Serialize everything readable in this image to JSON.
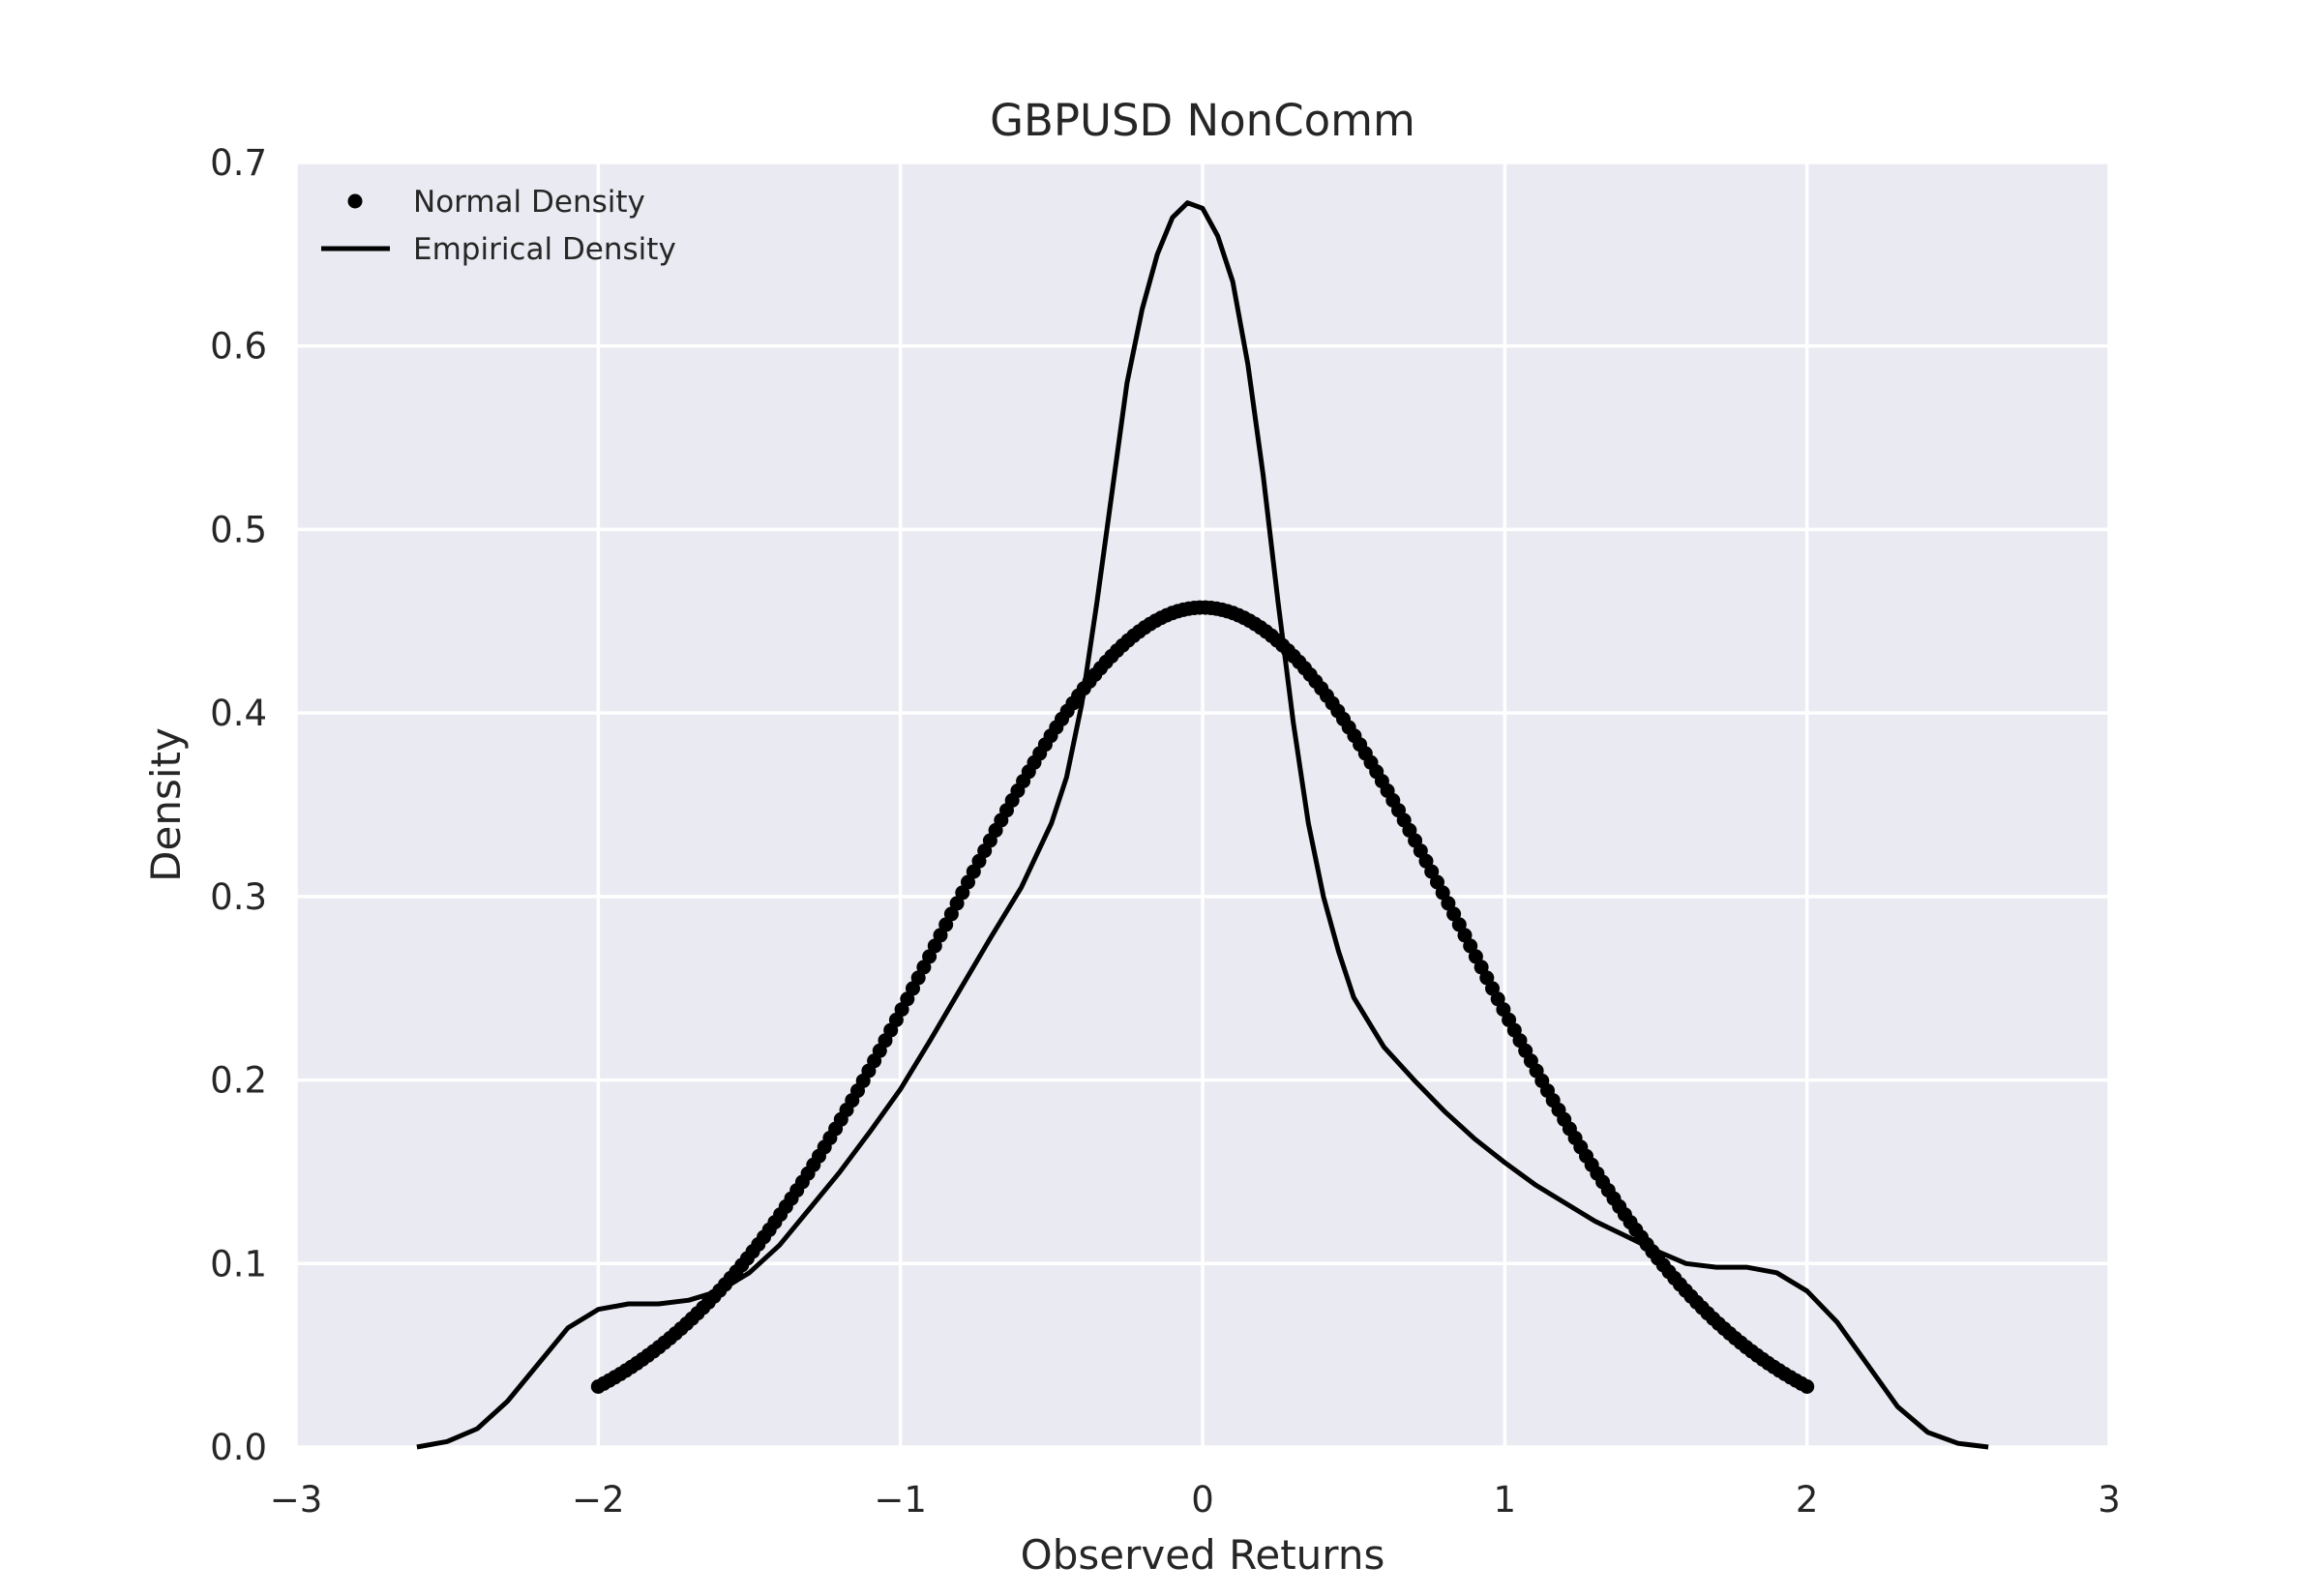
{
  "chart_data": {
    "type": "line",
    "title": "GBPUSD NonComm",
    "xlabel": "Observed Returns",
    "ylabel": "Density",
    "xlim": [
      -3,
      3
    ],
    "ylim": [
      0,
      0.7
    ],
    "xticks": [
      -3,
      -2,
      -1,
      0,
      1,
      2,
      3
    ],
    "xtick_labels": [
      "−3",
      "−2",
      "−1",
      "0",
      "1",
      "2",
      "3"
    ],
    "yticks": [
      0,
      0.1,
      0.2,
      0.3,
      0.4,
      0.5,
      0.6,
      0.7
    ],
    "ytick_labels": [
      "0.0",
      "0.1",
      "0.2",
      "0.3",
      "0.4",
      "0.5",
      "0.6",
      "0.7"
    ],
    "grid": true,
    "legend_position": "top-left",
    "colors": {
      "plot_background": "#EAEAF2",
      "grid": "#FFFFFF",
      "series": "#000000",
      "text": "#262626"
    },
    "series": [
      {
        "name": "Normal Density",
        "style": "markers",
        "mean": 0,
        "std": 0.872,
        "x_range": [
          -2,
          2
        ]
      },
      {
        "name": "Empirical Density",
        "style": "line",
        "x": [
          -2.6,
          -2.5,
          -2.4,
          -2.3,
          -2.2,
          -2.1,
          -2.0,
          -1.9,
          -1.8,
          -1.7,
          -1.6,
          -1.5,
          -1.4,
          -1.3,
          -1.2,
          -1.1,
          -1.0,
          -0.9,
          -0.8,
          -0.7,
          -0.6,
          -0.5,
          -0.45,
          -0.4,
          -0.35,
          -0.3,
          -0.25,
          -0.2,
          -0.15,
          -0.1,
          -0.05,
          0.0,
          0.05,
          0.1,
          0.15,
          0.2,
          0.25,
          0.3,
          0.35,
          0.4,
          0.45,
          0.5,
          0.6,
          0.7,
          0.8,
          0.9,
          1.0,
          1.1,
          1.2,
          1.3,
          1.4,
          1.5,
          1.6,
          1.7,
          1.8,
          1.9,
          2.0,
          2.1,
          2.2,
          2.3,
          2.4,
          2.5,
          2.6
        ],
        "y": [
          0.0,
          0.003,
          0.01,
          0.025,
          0.045,
          0.065,
          0.075,
          0.078,
          0.078,
          0.08,
          0.085,
          0.095,
          0.11,
          0.13,
          0.15,
          0.172,
          0.195,
          0.222,
          0.25,
          0.278,
          0.305,
          0.34,
          0.365,
          0.405,
          0.46,
          0.52,
          0.58,
          0.62,
          0.65,
          0.67,
          0.678,
          0.675,
          0.66,
          0.635,
          0.59,
          0.53,
          0.46,
          0.395,
          0.34,
          0.3,
          0.27,
          0.245,
          0.218,
          0.2,
          0.183,
          0.168,
          0.155,
          0.143,
          0.133,
          0.123,
          0.115,
          0.107,
          0.1,
          0.098,
          0.098,
          0.095,
          0.085,
          0.068,
          0.045,
          0.022,
          0.008,
          0.002,
          0.0
        ]
      }
    ]
  }
}
